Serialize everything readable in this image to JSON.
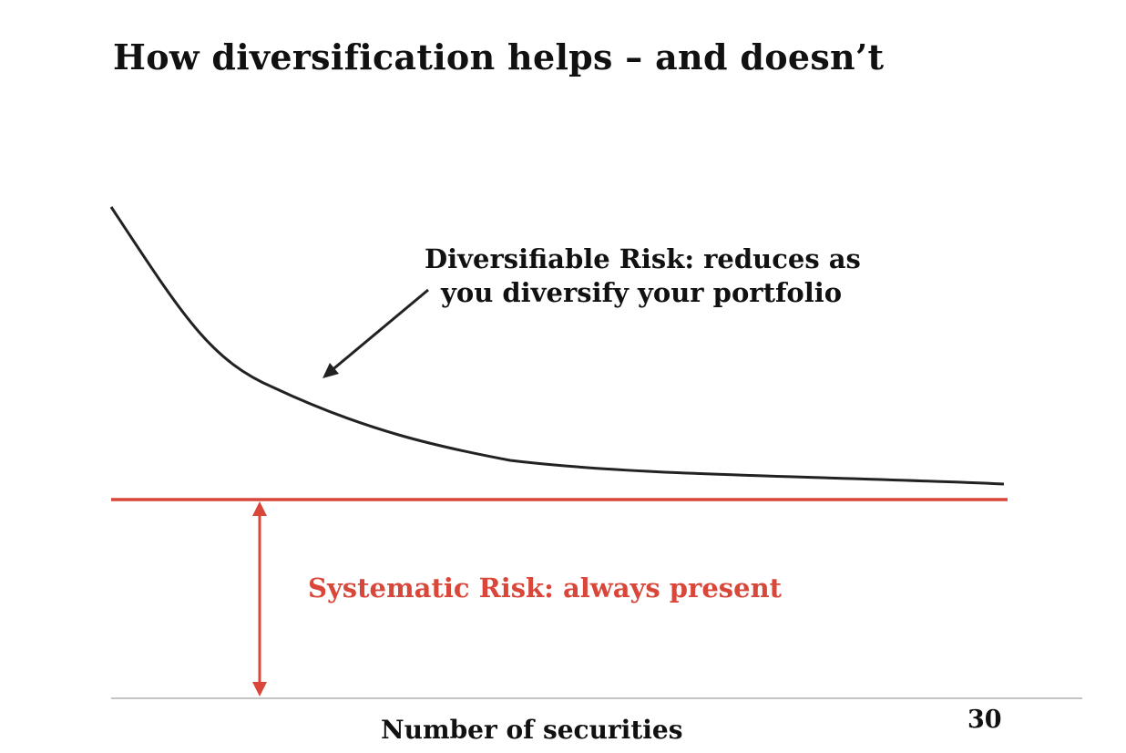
{
  "slide": {
    "title": "How diversification helps – and doesn’t",
    "page_number": "30"
  },
  "diagram": {
    "diversifiable_label_line1": "Diversifiable Risk: reduces as",
    "diversifiable_label_line2": "you diversify your portfolio",
    "systematic_label": "Systematic Risk: always present",
    "x_axis_label": "Number of securities",
    "colors": {
      "curve": "#222222",
      "systematic": "#d9473a",
      "axis": "#b0b0b0",
      "text": "#111111"
    }
  }
}
